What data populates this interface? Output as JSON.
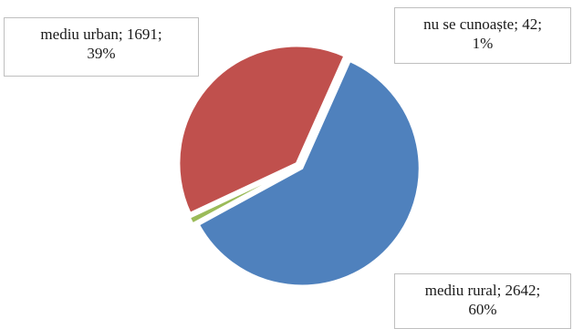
{
  "chart_data": {
    "type": "pie",
    "title": "",
    "slices": [
      {
        "name": "mediu rural",
        "value": 2642,
        "percent_label": "60%",
        "color": "#4f81bd"
      },
      {
        "name": "nu se cunoaște",
        "value": 42,
        "percent_label": "1%",
        "color": "#9bbb59"
      },
      {
        "name": "mediu urban",
        "value": 1691,
        "percent_label": "39%",
        "color": "#c0504d"
      }
    ],
    "labels": {
      "urban": {
        "line1": "mediu urban; 1691;",
        "line2": "39%"
      },
      "unknown": {
        "line1": "nu se cunoaște; 42;",
        "line2": "1%"
      },
      "rural": {
        "line1": "mediu rural;  2642;",
        "line2": "60%"
      }
    },
    "legend": "none",
    "exploded": true
  }
}
